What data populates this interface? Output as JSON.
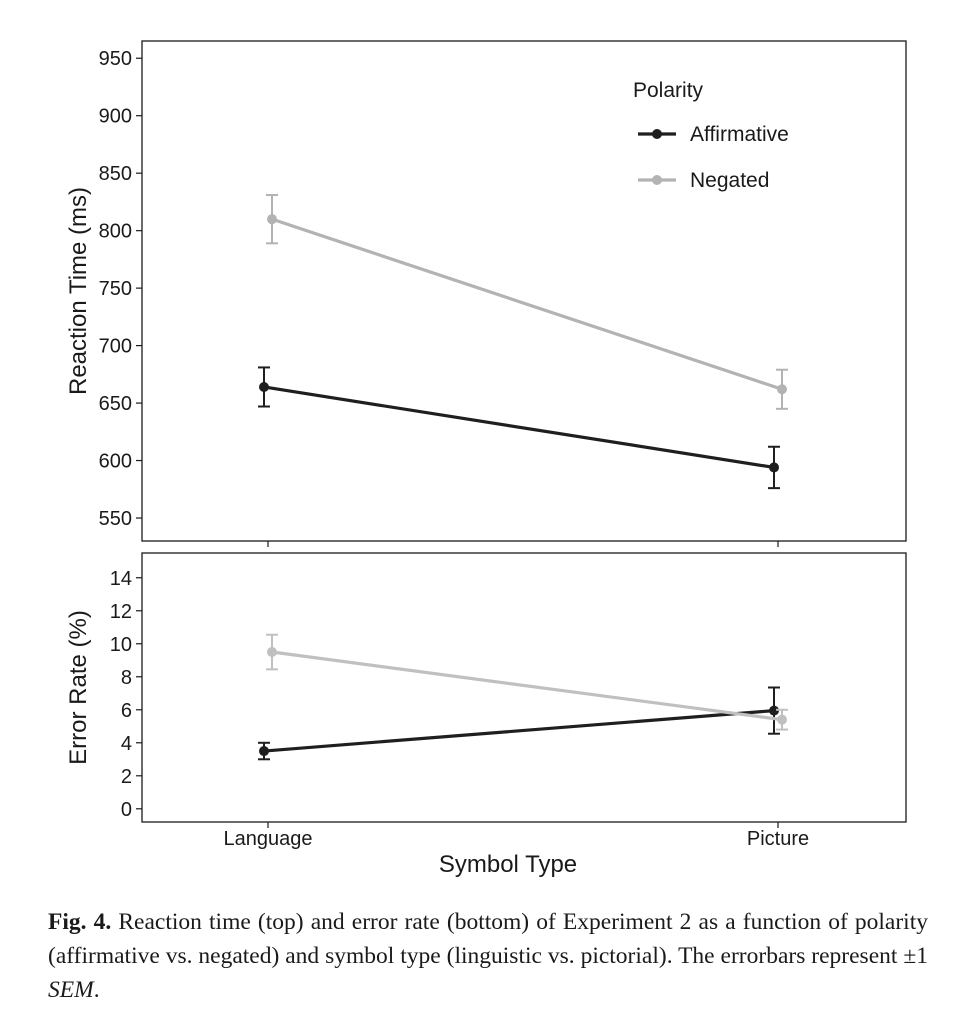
{
  "chart_data": [
    {
      "type": "line",
      "panel": "top",
      "categories": [
        "Language",
        "Picture"
      ],
      "xlabel": "",
      "ylabel": "Reaction Time (ms)",
      "ylim": [
        530,
        965
      ],
      "yticks": [
        550,
        600,
        650,
        700,
        750,
        800,
        850,
        900,
        950
      ],
      "grid": false,
      "legend": {
        "title": "Polarity",
        "position": "top-right",
        "entries": [
          "Affirmative",
          "Negated"
        ]
      },
      "series": [
        {
          "name": "Affirmative",
          "color": "#1f1f1f",
          "values": [
            664,
            594
          ],
          "error": [
            17,
            18
          ]
        },
        {
          "name": "Negated",
          "color": "#b3b3b3",
          "values": [
            810,
            662
          ],
          "error": [
            21,
            17
          ]
        }
      ]
    },
    {
      "type": "line",
      "panel": "bottom",
      "categories": [
        "Language",
        "Picture"
      ],
      "xlabel": "Symbol Type",
      "ylabel": "Error Rate (%)",
      "ylim": [
        -0.8,
        15.5
      ],
      "yticks": [
        0,
        2,
        4,
        6,
        8,
        10,
        12,
        14
      ],
      "grid": false,
      "series": [
        {
          "name": "Affirmative",
          "color": "#1f1f1f",
          "values": [
            3.5,
            5.95
          ],
          "error": [
            0.5,
            1.4
          ]
        },
        {
          "name": "Negated",
          "color": "#c0c0c0",
          "values": [
            9.5,
            5.4
          ],
          "error": [
            1.05,
            0.6
          ]
        }
      ]
    }
  ],
  "caption": {
    "label": "Fig. 4.",
    "text": " Reaction time (top) and error rate (bottom) of Experiment 2 as a function of polarity (affirmative vs. negated) and symbol type (linguistic vs. pictorial). The errorbars represent ±1 ",
    "italic": "SEM",
    "end": "."
  }
}
